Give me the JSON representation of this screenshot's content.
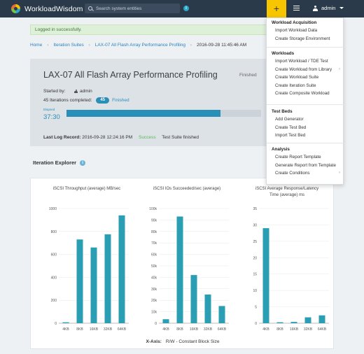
{
  "app": {
    "name": "WorkloadWisdom",
    "search_placeholder": "Search system entities",
    "plus_label": "+",
    "user_name": "admin"
  },
  "alert": {
    "text": "Logged in successfully."
  },
  "breadcrumb": {
    "items": [
      "Home",
      "Iteration Suites",
      "LAX-07 All Flash Array Performance Profiling"
    ],
    "current": "2016-09-28 11:45:46 AM",
    "separator": "›"
  },
  "suite": {
    "title": "LAX-07 All Flash Array Performance Profiling",
    "status": "Finished",
    "started_by_label": "Started by:",
    "started_by_user": "admin",
    "iterations_label": "45 Iterations completed:",
    "iterations_count": "45",
    "iterations_status": "Finished",
    "elapsed_label": "Elapsed",
    "elapsed_value": "37:30",
    "progress_fraction": 0.79,
    "last_log_label": "Last Log Record:",
    "last_log_time": "2016-09-28 12:24:16 PM",
    "last_log_status": "Success",
    "last_log_message": "Test Suite finished"
  },
  "explorer": {
    "title": "Iteration Explorer",
    "info_icon": "i"
  },
  "chart_data": [
    {
      "type": "bar",
      "title": "iSCSI Throughput (average) MB/sec",
      "categories": [
        "4KB",
        "8KB",
        "16KB",
        "32KB",
        "64KB"
      ],
      "values": [
        8,
        730,
        660,
        775,
        940
      ],
      "ylim": [
        0,
        1000
      ],
      "yticks": [
        "0",
        "200",
        "400",
        "600",
        "800",
        "1000"
      ],
      "color": "#2a9fb3"
    },
    {
      "type": "bar",
      "title": "iSCSI IOs Succeeded/sec (average)",
      "categories": [
        "4KB",
        "8KB",
        "16KB",
        "32KB",
        "64KB"
      ],
      "values": [
        3.5,
        93,
        42,
        25,
        15
      ],
      "ylim": [
        0,
        100
      ],
      "yticks": [
        "0",
        "10k",
        "20k",
        "30k",
        "40k",
        "50k",
        "60k",
        "70k",
        "80k",
        "90k",
        "100k"
      ],
      "color": "#2a9fb3"
    },
    {
      "type": "bar",
      "title": "iSCSI Average Response/Latency Time (average) ms",
      "categories": [
        "4KB",
        "8KB",
        "16KB",
        "32KB",
        "64KB"
      ],
      "values": [
        29,
        0.3,
        0.4,
        1.8,
        2.4
      ],
      "ylim": [
        0,
        35
      ],
      "yticks": [
        "0",
        "5",
        "10",
        "15",
        "20",
        "25",
        "30",
        "35"
      ],
      "color": "#2a9fb3"
    }
  ],
  "xaxis": {
    "label": "X-Axis:",
    "value": "R/W - Constant Block Size"
  },
  "dropdown": {
    "sections": [
      {
        "head": "Workload Acquisition",
        "items": [
          "Import Workload Data",
          "Create Storage Environment"
        ]
      },
      {
        "head": "Workloads",
        "items": [
          "Import Workload / TDE Test",
          "Create Workload from Library",
          "Create Workload Suite",
          "Create Iteration Suite",
          "Create Composite Workload"
        ]
      },
      {
        "head": "Test Beds",
        "items": [
          "Add Generator",
          "Create Test Bed",
          "Import Test Bed"
        ]
      },
      {
        "head": "Analysis",
        "items": [
          "Create Report Template",
          "Generate Report from Template",
          "Create Conditions"
        ]
      }
    ]
  }
}
